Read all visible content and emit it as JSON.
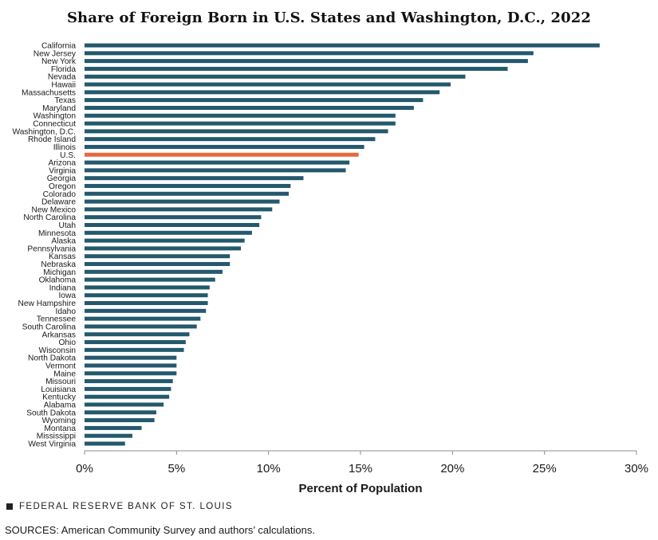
{
  "chart_data": {
    "type": "bar",
    "orientation": "horizontal",
    "title": "Share of Foreign Born in U.S. States and Washington, D.C., 2022",
    "xlabel": "Percent of Population",
    "ylabel": "",
    "xlim": [
      0,
      30
    ],
    "x_ticks": [
      0,
      5,
      10,
      15,
      20,
      25,
      30
    ],
    "x_tick_labels": [
      "0%",
      "5%",
      "10%",
      "15%",
      "20%",
      "25%",
      "30%"
    ],
    "grid": false,
    "legend": "none",
    "categories": [
      "California",
      "New Jersey",
      "New York",
      "Florida",
      "Nevada",
      "Hawaii",
      "Massachusetts",
      "Texas",
      "Maryland",
      "Washington",
      "Connecticut",
      "Washington, D.C.",
      "Rhode Island",
      "Illinois",
      "U.S.",
      "Arizona",
      "Virginia",
      "Georgia",
      "Oregon",
      "Colorado",
      "Delaware",
      "New Mexico",
      "North Carolina",
      "Utah",
      "Minnesota",
      "Alaska",
      "Pennsylvania",
      "Kansas",
      "Nebraska",
      "Michigan",
      "Oklahoma",
      "Indiana",
      "Iowa",
      "New Hampshire",
      "Idaho",
      "Tennessee",
      "South Carolina",
      "Arkansas",
      "Ohio",
      "Wisconsin",
      "North Dakota",
      "Vermont",
      "Maine",
      "Missouri",
      "Louisiana",
      "Kentucky",
      "Alabama",
      "South Dakota",
      "Wyoming",
      "Montana",
      "Mississippi",
      "West Virginia"
    ],
    "values": [
      28.0,
      24.4,
      24.1,
      23.0,
      20.7,
      19.9,
      19.3,
      18.4,
      17.9,
      16.9,
      16.9,
      16.5,
      15.8,
      15.2,
      14.9,
      14.4,
      14.2,
      11.9,
      11.2,
      11.1,
      10.6,
      10.2,
      9.6,
      9.5,
      9.1,
      8.7,
      8.5,
      7.9,
      7.9,
      7.5,
      7.1,
      6.8,
      6.7,
      6.7,
      6.6,
      6.3,
      6.1,
      5.7,
      5.5,
      5.4,
      5.0,
      5.0,
      5.0,
      4.8,
      4.7,
      4.6,
      4.3,
      3.9,
      3.8,
      3.1,
      2.6,
      2.2
    ],
    "highlight_category": "U.S.",
    "colors": {
      "bar": "#24596d",
      "highlight": "#e66a3d",
      "axis": "#8c8c8c",
      "text": "#1a1a1a"
    }
  },
  "footer": {
    "brand": "FEDERAL RESERVE BANK OF ST. LOUIS",
    "sources": "SOURCES: American Community Survey and authors’ calculations."
  }
}
